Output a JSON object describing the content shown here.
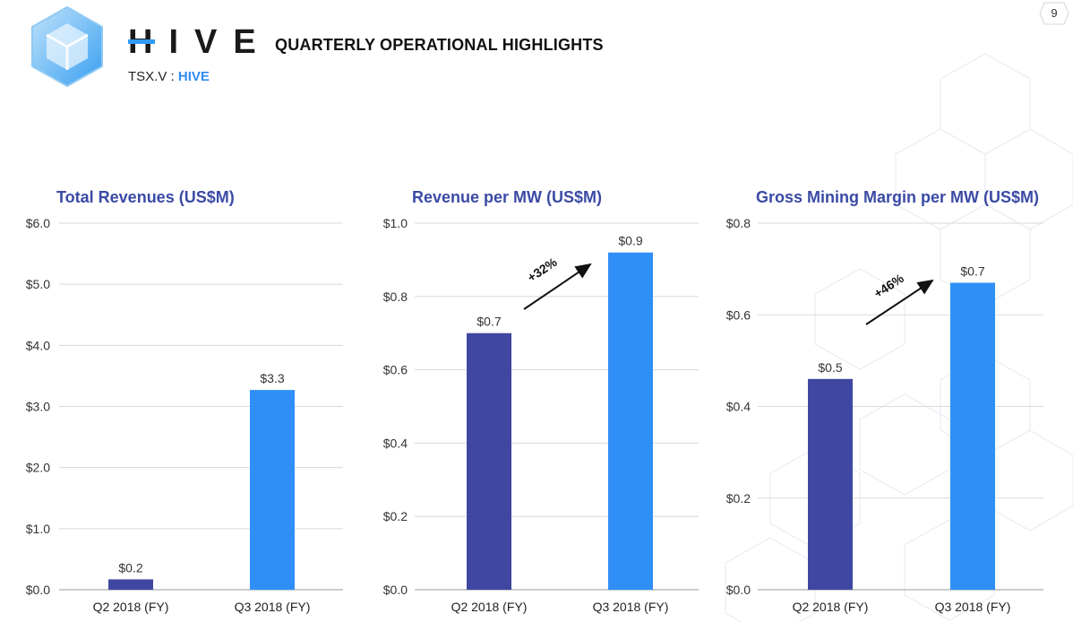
{
  "header": {
    "brand": "HIVE",
    "ticker_prefix": "TSX.V : ",
    "ticker_symbol": "HIVE",
    "headline": "QUARTERLY OPERATIONAL HIGHLIGHTS",
    "page_number": "9"
  },
  "colors": {
    "title": "#3b4aa5",
    "q2_bar": "#3f47a0",
    "q3_bar": "#2f8ff7",
    "accent": "#2f9bf6"
  },
  "chart_data": [
    {
      "type": "bar",
      "title": "Total Revenues (US$M)",
      "categories": [
        "Q2 2018 (FY)",
        "Q3 2018 (FY)"
      ],
      "values": [
        0.17,
        3.27
      ],
      "data_labels": [
        "$0.2",
        "$3.3"
      ],
      "ylim": [
        0,
        6
      ],
      "yticks": [
        0,
        1,
        2,
        3,
        4,
        5,
        6
      ],
      "ytick_labels": [
        "$0.0",
        "$1.0",
        "$2.0",
        "$3.0",
        "$4.0",
        "$5.0",
        "$6.0"
      ],
      "grid": true
    },
    {
      "type": "bar",
      "title": "Revenue per MW (US$M)",
      "categories": [
        "Q2 2018 (FY)",
        "Q3 2018 (FY)"
      ],
      "values": [
        0.7,
        0.92
      ],
      "data_labels": [
        "$0.7",
        "$0.9"
      ],
      "ylim": [
        0,
        1.0
      ],
      "yticks": [
        0,
        0.2,
        0.4,
        0.6,
        0.8,
        1.0
      ],
      "ytick_labels": [
        "$0.0",
        "$0.2",
        "$0.4",
        "$0.6",
        "$0.8",
        "$1.0"
      ],
      "grid": true,
      "annotation": "+32%"
    },
    {
      "type": "bar",
      "title": "Gross Mining Margin per MW (US$M)",
      "categories": [
        "Q2 2018 (FY)",
        "Q3 2018 (FY)"
      ],
      "values": [
        0.46,
        0.67
      ],
      "data_labels": [
        "$0.5",
        "$0.7"
      ],
      "ylim": [
        0,
        0.8
      ],
      "yticks": [
        0,
        0.2,
        0.4,
        0.6,
        0.8
      ],
      "ytick_labels": [
        "$0.0",
        "$0.2",
        "$0.4",
        "$0.6",
        "$0.8"
      ],
      "grid": true,
      "annotation": "+46%"
    }
  ]
}
